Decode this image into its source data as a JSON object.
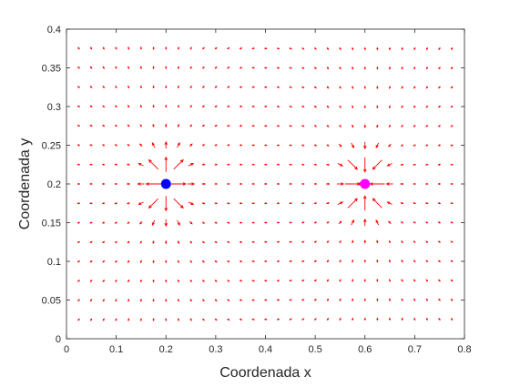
{
  "chart_data": {
    "type": "quiver",
    "xlabel": "Coordenada x",
    "ylabel": "Coordenada y",
    "xlim": [
      0,
      0.8
    ],
    "ylim": [
      0,
      0.4
    ],
    "xticks": [
      0,
      0.1,
      0.2,
      0.3,
      0.4,
      0.5,
      0.6,
      0.7,
      0.8
    ],
    "xtick_labels": [
      "0",
      "0.1",
      "0.2",
      "0.3",
      "0.4",
      "0.5",
      "0.6",
      "0.7",
      "0.8"
    ],
    "yticks": [
      0,
      0.05,
      0.1,
      0.15,
      0.2,
      0.25,
      0.3,
      0.35,
      0.4
    ],
    "ytick_labels": [
      "0",
      "0.05",
      "0.1",
      "0.15",
      "0.2",
      "0.25",
      "0.3",
      "0.35",
      "0.4"
    ],
    "grid": false,
    "field": {
      "arrow_color": "#ff0000",
      "x_range": [
        0.025,
        0.775
      ],
      "y_range": [
        0.025,
        0.375
      ],
      "step": 0.025,
      "sources": [
        {
          "x": 0.2,
          "y": 0.2,
          "sign": 1
        },
        {
          "x": 0.6,
          "y": 0.2,
          "sign": -1
        }
      ]
    },
    "points": [
      {
        "x": 0.2,
        "y": 0.2,
        "color": "#0000ff"
      },
      {
        "x": 0.6,
        "y": 0.2,
        "color": "#ff00ff"
      }
    ]
  }
}
